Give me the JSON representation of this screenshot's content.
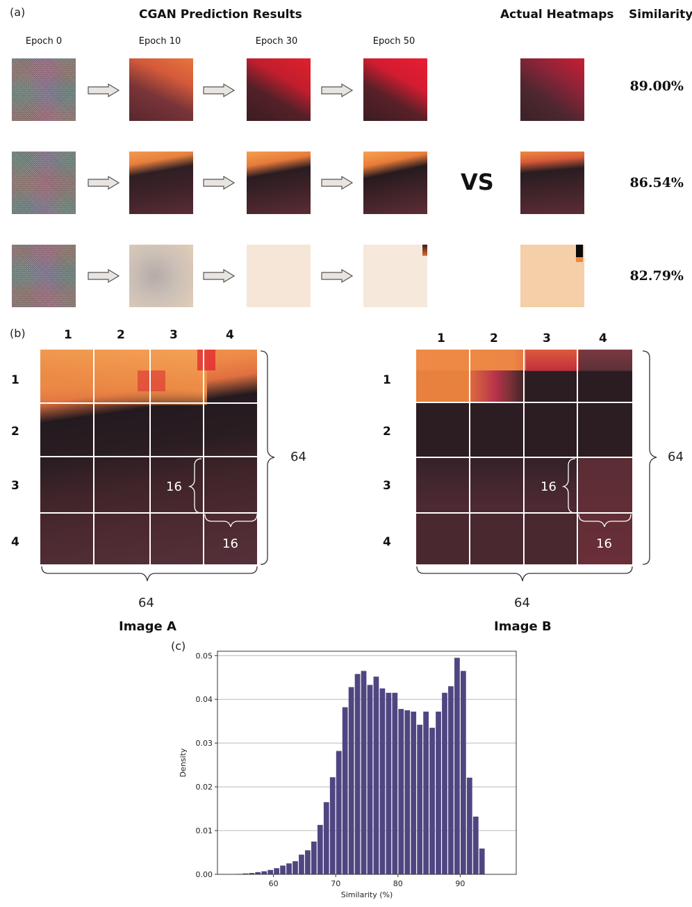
{
  "panel_a": {
    "label": "(a)",
    "title": "CGAN Prediction Results",
    "actual_title": "Actual Heatmaps",
    "similarity_title": "Similarity",
    "epochs": [
      "Epoch 0",
      "Epoch 10",
      "Epoch 30",
      "Epoch 50"
    ],
    "vs": "VS",
    "similarities": [
      "89.00%",
      "86.54%",
      "82.79%"
    ]
  },
  "panel_b": {
    "label": "(b)",
    "cols": [
      "1",
      "2",
      "3",
      "4"
    ],
    "rows": [
      "1",
      "2",
      "3",
      "4"
    ],
    "size_total": "64",
    "size_block": "16",
    "image_a": "Image A",
    "image_b": "Image B"
  },
  "panel_c": {
    "label": "(c)"
  },
  "chart_data": {
    "type": "bar",
    "title": "",
    "xlabel": "Similarity (%)",
    "ylabel": "Density",
    "xlim": [
      51,
      99
    ],
    "ylim": [
      0,
      0.051
    ],
    "xticks": [
      "60",
      "70",
      "80",
      "90"
    ],
    "yticks": [
      "0.00",
      "0.01",
      "0.02",
      "0.03",
      "0.04",
      "0.05"
    ],
    "grid": "horizontal",
    "bar_color": "#4f4681",
    "bin_width": 1,
    "x": [
      54,
      55,
      56,
      57,
      58,
      59,
      60,
      61,
      62,
      63,
      64,
      65,
      66,
      67,
      68,
      69,
      70,
      71,
      72,
      73,
      74,
      75,
      76,
      77,
      78,
      79,
      80,
      81,
      82,
      83,
      84,
      85,
      86,
      87,
      88,
      89,
      90,
      91,
      92,
      93,
      94
    ],
    "values": [
      0.0001,
      0.0002,
      0.0003,
      0.0005,
      0.0007,
      0.001,
      0.0014,
      0.002,
      0.0025,
      0.003,
      0.0045,
      0.0055,
      0.0075,
      0.0113,
      0.0165,
      0.0222,
      0.0282,
      0.0382,
      0.0428,
      0.0458,
      0.0465,
      0.0433,
      0.0452,
      0.0425,
      0.0415,
      0.0415,
      0.0378,
      0.0375,
      0.0372,
      0.0342,
      0.0372,
      0.0335,
      0.0372,
      0.0415,
      0.043,
      0.0495,
      0.0465,
      0.0221,
      0.0132,
      0.0059,
      0.0
    ]
  }
}
